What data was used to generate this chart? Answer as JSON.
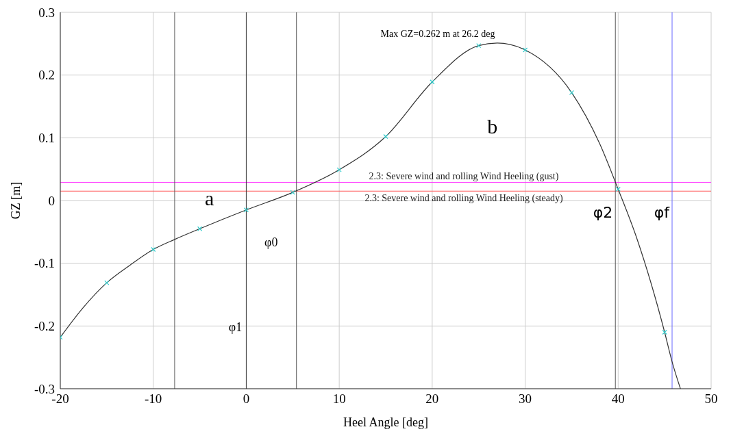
{
  "chart_data": {
    "type": "line",
    "xlabel": "Heel Angle [deg]",
    "ylabel": "GZ [m]",
    "xlim": [
      -20,
      50
    ],
    "ylim": [
      -0.3,
      0.3
    ],
    "xticks": [
      -20,
      -10,
      0,
      10,
      20,
      30,
      40,
      50
    ],
    "yticks": [
      -0.3,
      -0.2,
      -0.1,
      0,
      0.1,
      0.2,
      0.3
    ],
    "grid": true,
    "series": [
      {
        "color": "#333333",
        "marker": "none",
        "line_style": "solid",
        "x": [
          -20,
          -17.5,
          -15,
          -12.5,
          -10,
          -7.7,
          -5,
          0,
          5,
          10,
          15,
          20,
          25,
          27,
          30,
          35,
          38,
          40,
          42,
          45,
          45.8,
          46.7
        ],
        "values": [
          -0.218,
          -0.17,
          -0.131,
          -0.103,
          -0.078,
          -0.062,
          -0.045,
          -0.015,
          0.013,
          0.049,
          0.102,
          0.189,
          0.247,
          0.251,
          0.24,
          0.172,
          0.091,
          0.018,
          -0.06,
          -0.21,
          -0.257,
          -0.3
        ]
      },
      {
        "type": "scatter",
        "color": "#33cccc",
        "marker": "cross",
        "x": [
          -20,
          -15,
          -10,
          -5,
          0,
          5,
          10,
          15,
          20,
          25,
          30,
          35,
          40,
          45
        ],
        "values": [
          -0.218,
          -0.131,
          -0.078,
          -0.045,
          -0.015,
          0.013,
          0.049,
          0.102,
          0.189,
          0.247,
          0.24,
          0.172,
          0.018,
          -0.21
        ]
      }
    ],
    "ref_lines": [
      {
        "axis": "y",
        "value": 0.029,
        "label": "2.3:  Severe wind and rolling Wind Heeling (gust)",
        "color": "#ff33ff"
      },
      {
        "axis": "y",
        "value": 0.015,
        "label": "2.3:  Severe wind and rolling Wind Heeling (steady)",
        "color": "#ff5555"
      },
      {
        "axis": "x",
        "value": 0,
        "label": null,
        "color": "#333333"
      },
      {
        "axis": "x",
        "value": -7.7,
        "label": null,
        "color": "#555555"
      },
      {
        "axis": "x",
        "value": 5.4,
        "label": null,
        "color": "#555555"
      },
      {
        "axis": "x",
        "value": 39.7,
        "label": "φ2",
        "color": "#555555"
      },
      {
        "axis": "x",
        "value": 45.8,
        "label": "φf",
        "color": "#6666ff"
      }
    ],
    "annotations": [
      "Max GZ=0.262 m at 26.2 deg",
      "a",
      "b",
      "φ0",
      "φ1"
    ]
  }
}
